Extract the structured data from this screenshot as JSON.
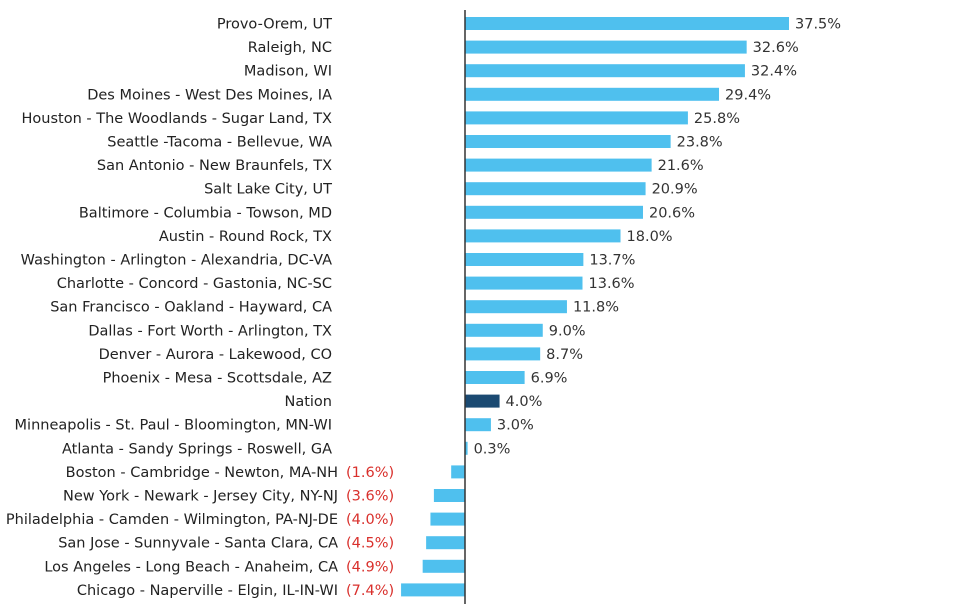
{
  "chart_data": {
    "type": "bar",
    "orientation": "horizontal",
    "title": "",
    "xlabel": "",
    "ylabel": "",
    "xlim": [
      -7.4,
      37.5
    ],
    "grid": false,
    "legend": "none",
    "colors": {
      "bar": "#4FC0EE",
      "highlight_bar": "#1B4A72",
      "axis": "#333333",
      "label": "#222222",
      "positive_value_label": "#333333",
      "negative_value_label": "#D9302C"
    },
    "highlight_category": "Nation",
    "categories": [
      "Provo-Orem, UT",
      "Raleigh, NC",
      "Madison, WI",
      "Des Moines - West Des Moines, IA",
      "Houston - The Woodlands - Sugar Land, TX",
      "Seattle -Tacoma - Bellevue, WA",
      "San Antonio - New Braunfels, TX",
      "Salt Lake City, UT",
      "Baltimore - Columbia - Towson, MD",
      "Austin - Round Rock, TX",
      "Washington - Arlington - Alexandria, DC-VA",
      "Charlotte - Concord - Gastonia, NC-SC",
      "San Francisco - Oakland - Hayward, CA",
      "Dallas - Fort Worth - Arlington, TX",
      "Denver - Aurora - Lakewood, CO",
      "Phoenix - Mesa - Scottsdale, AZ",
      "Nation",
      "Minneapolis - St. Paul - Bloomington, MN-WI",
      "Atlanta - Sandy Springs - Roswell, GA",
      "Boston - Cambridge - Newton, MA-NH",
      "New York - Newark - Jersey City, NY-NJ",
      "Philadelphia - Camden - Wilmington, PA-NJ-DE",
      "San Jose - Sunnyvale - Santa Clara, CA",
      "Los Angeles - Long Beach - Anaheim, CA",
      "Chicago - Naperville - Elgin, IL-IN-WI"
    ],
    "values": [
      37.5,
      32.6,
      32.4,
      29.4,
      25.8,
      23.8,
      21.6,
      20.9,
      20.6,
      18.0,
      13.7,
      13.6,
      11.8,
      9.0,
      8.7,
      6.9,
      4.0,
      3.0,
      0.3,
      -1.6,
      -3.6,
      -4.0,
      -4.5,
      -4.9,
      -7.4
    ],
    "value_labels": [
      "37.5%",
      "32.6%",
      "32.4%",
      "29.4%",
      "25.8%",
      "23.8%",
      "21.6%",
      "20.9%",
      "20.6%",
      "18.0%",
      "13.7%",
      "13.6%",
      "11.8%",
      "9.0%",
      "8.7%",
      "6.9%",
      "4.0%",
      "3.0%",
      "0.3%",
      "(1.6%)",
      "(3.6%)",
      "(4.0%)",
      "(4.5%)",
      "(4.9%)",
      "(7.4%)"
    ]
  }
}
